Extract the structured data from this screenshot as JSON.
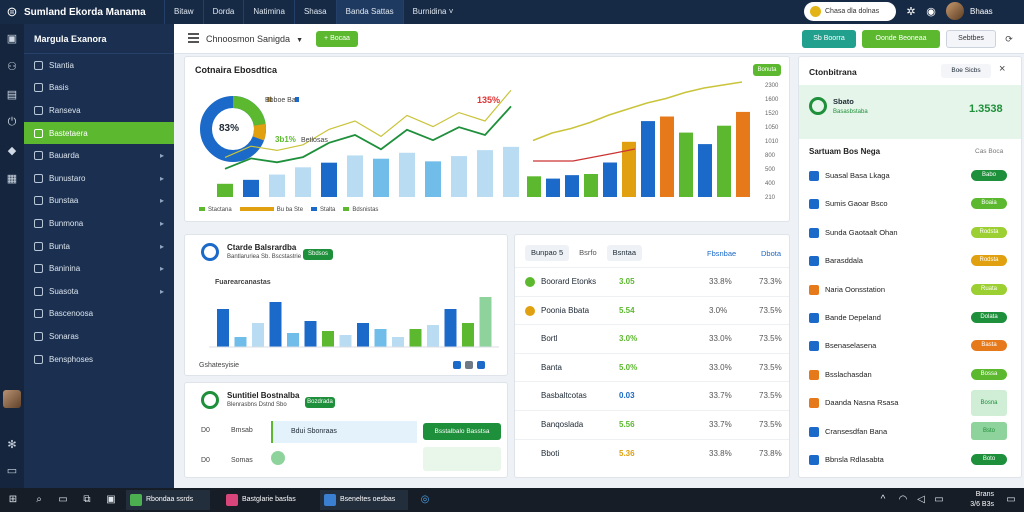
{
  "app": {
    "title": "Sumland Ekorda Manama"
  },
  "topnav": [
    "Bitaw",
    "Dorda",
    "Natimina",
    "Shasa",
    "Banda Sattas",
    "Burnidina ˅"
  ],
  "search": {
    "placeholder": "Chasa dla dolnas"
  },
  "user": {
    "name": "Bhaas"
  },
  "sidebar": {
    "title": "Margula Exanora",
    "items": [
      {
        "label": "Stantia",
        "active": false,
        "chev": false
      },
      {
        "label": "Basis",
        "active": false,
        "chev": false
      },
      {
        "label": "Ranseva",
        "active": false,
        "chev": false
      },
      {
        "label": "Bastetaera",
        "active": true,
        "chev": false
      },
      {
        "label": "Bauarda",
        "active": false,
        "chev": true
      },
      {
        "label": "Bunustaro",
        "active": false,
        "chev": true
      },
      {
        "label": "Bunstaa",
        "active": false,
        "chev": true
      },
      {
        "label": "Bunmona",
        "active": false,
        "chev": true
      },
      {
        "label": "Bunta",
        "active": false,
        "chev": true
      },
      {
        "label": "Baninina",
        "active": false,
        "chev": true
      },
      {
        "label": "Suasota",
        "active": false,
        "chev": true
      },
      {
        "label": "Bascenoosa",
        "active": false,
        "chev": false
      },
      {
        "label": "Sonaras",
        "active": false,
        "chev": false
      },
      {
        "label": "Bensphoses",
        "active": false,
        "chev": false
      }
    ]
  },
  "header": {
    "breadcrumb": "Chnoosmon Sanigda",
    "add_label": "+ Bocaa",
    "btn1": "Sb Boorra",
    "btn2": "Oonde Beoneaa",
    "btn3": "Sebtbes",
    "close": "×"
  },
  "overview": {
    "title": "Cotnaira Ebosdtica",
    "badge": "Bonuta",
    "donut_center": "83%",
    "donut_label1": "Bbboe Ba",
    "donut_label2": "Betlosas",
    "donut_pct2": "3b1%",
    "line_label": "135%",
    "legend": [
      "Stactana",
      "Bu ba Ste",
      "Stalta",
      "Bdsnistas"
    ],
    "chart_data": {
      "type": "bar",
      "series": [
        {
          "name": "left",
          "values": [
            20,
            26,
            34,
            45,
            52,
            63,
            58,
            67,
            54,
            62,
            71,
            76
          ]
        },
        {
          "name": "right",
          "values": [
            18,
            16,
            19,
            20,
            30,
            48,
            66,
            70,
            56,
            46,
            62,
            74
          ]
        }
      ],
      "line_left": [
        14,
        22,
        19,
        23,
        34,
        40,
        29,
        44,
        36,
        46,
        40,
        62
      ],
      "line_right": [
        22,
        32,
        38,
        46,
        56,
        64,
        72,
        78,
        86,
        92,
        96,
        100
      ],
      "yticks_right": [
        "2300",
        "1600",
        "1520",
        "1050",
        "1010",
        "800",
        "500",
        "400",
        "210"
      ]
    }
  },
  "card2": {
    "title": "Ctarde Balsrardba",
    "subtitle": "Bantlaruriea Sb. Bscstastrie",
    "badge": "Sbdsos",
    "chart_label": "Fuarearcanastas",
    "footer": "Gshatesyisie",
    "chart_data": {
      "type": "bar",
      "values": [
        38,
        10,
        24,
        45,
        14,
        26,
        16,
        12,
        24,
        18,
        10,
        18,
        22,
        38,
        24,
        50
      ],
      "colors": [
        "#1b69c8",
        "#6fbde8",
        "#b9dcf2",
        "#1b69c8",
        "#6fbde8",
        "#1b69c8",
        "#5cb92f",
        "#b9dcf2",
        "#1b69c8",
        "#6fbde8",
        "#b9dcf2",
        "#5cb92f",
        "#b9dcf2",
        "#1b69c8",
        "#5cb92f",
        "#8fd39c"
      ]
    }
  },
  "card3": {
    "title": "Suntitiel Bostnalba",
    "subtitle": "Blenrasbns Dstnd Sbo",
    "badge": "Bozdrada",
    "rows": [
      {
        "a": "D0",
        "b": "Bmsab",
        "tag": "Bdui Sbonraas",
        "btn": "Bsstalbalo Basstsa"
      },
      {
        "a": "D0",
        "b": "Somas",
        "tag": "",
        "btn": ""
      }
    ]
  },
  "table": {
    "tabs": [
      "Bunpao 5",
      "Bsrfo",
      "Bsntaa"
    ],
    "headers": [
      "Fbsnbae",
      "Dbota"
    ],
    "rows": [
      {
        "name": "Boorard Etonks",
        "val": "3.05",
        "c1": "33.8%",
        "c2": "73.3%",
        "dot": "#5cb92f",
        "color": "#5cb92f"
      },
      {
        "name": "Poonia Bbata",
        "val": "5.54",
        "c1": "3.0%",
        "c2": "73.5%",
        "dot": "#e0a010",
        "color": "#5cb92f"
      },
      {
        "name": "Bortl",
        "val": "3.0%",
        "c1": "33.0%",
        "c2": "73.5%",
        "dot": "",
        "color": "#5cb92f"
      },
      {
        "name": "Banta",
        "val": "5.0%",
        "c1": "33.0%",
        "c2": "73.5%",
        "dot": "",
        "color": "#5cb92f"
      },
      {
        "name": "Basbaltcotas",
        "val": "0.03",
        "c1": "33.7%",
        "c2": "73.5%",
        "dot": "",
        "color": "#1b69c8"
      },
      {
        "name": "Banqoslada",
        "val": "5.56",
        "c1": "33.7%",
        "c2": "73.5%",
        "dot": "",
        "color": "#5cb92f"
      },
      {
        "name": "Bboti",
        "val": "5.36",
        "c1": "33.8%",
        "c2": "73.8%",
        "dot": "",
        "color": "#e0a010"
      }
    ]
  },
  "right": {
    "title": "Ctonbitrana",
    "btn": "Boe Sicbs",
    "close": "×",
    "kpi_label": "Sbato",
    "kpi_sub": "Basasbstaba",
    "kpi_value": "1.3538",
    "section": "Sartuam Bos Nega",
    "section_link": "Cas Boca",
    "rows": [
      {
        "name": "Suasal Basa Lkaga",
        "status": "Babo",
        "sq": "#1b69c8",
        "st": "#1e8f3a"
      },
      {
        "name": "Sumis Gaoar Bsco",
        "status": "Boaia",
        "sq": "#1b69c8",
        "st": "#5cb92f"
      },
      {
        "name": "Sunda Gaotaalt Ohan",
        "status": "Rodsta",
        "sq": "#1b69c8",
        "st": "#9ccf32"
      },
      {
        "name": "Barasddala",
        "status": "Rodsta",
        "sq": "#1b69c8",
        "st": "#e0a010"
      },
      {
        "name": "Naria Oonsstation",
        "status": "Ruata",
        "sq": "#e67a1a",
        "st": "#9ccf32"
      },
      {
        "name": "Bande Depeland",
        "status": "Dolata",
        "sq": "#1b69c8",
        "st": "#1e8f3a"
      },
      {
        "name": "Bsenaselasena",
        "status": "Basta",
        "sq": "#1b69c8",
        "st": "#e67a1a"
      },
      {
        "name": "Bsslachasdan",
        "status": "Bossa",
        "sq": "#e67a1a",
        "st": "#5cb92f"
      },
      {
        "name": "Daanda Nasna Rsasa",
        "status": "Bosna",
        "sq": "#e67a1a",
        "st": "#cfeed5"
      },
      {
        "name": "Cransesdfan Bana",
        "status": "Bsto",
        "sq": "#1b69c8",
        "st": "#8fd39c"
      },
      {
        "name": "Bbnsla Rdlasabta",
        "status": "Boto",
        "sq": "#1b69c8",
        "st": "#1e8f3a"
      }
    ]
  },
  "taskbar": {
    "windows": [
      "Rbondaa ssrds",
      "Bastglarie basfas",
      "Bseneltes oesbas"
    ],
    "clock": "Brans",
    "date": "3/6 B3s"
  }
}
